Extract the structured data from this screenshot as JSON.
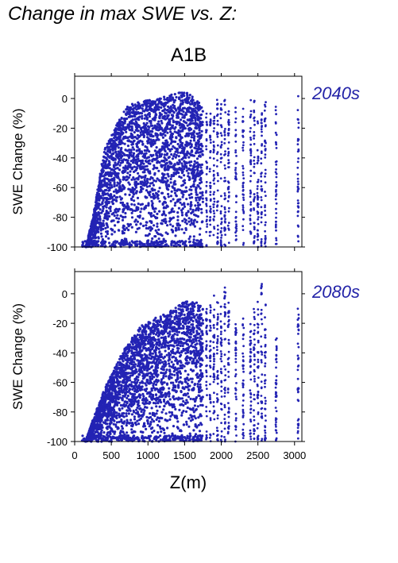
{
  "figure": {
    "title": "Change in max SWE vs. Z:",
    "scenario": "A1B"
  },
  "colors": {
    "points": "#2323b4",
    "label": "#2323a8",
    "axis": "#000000"
  },
  "chart_data": [
    {
      "type": "scatter",
      "panel_label": "2040s",
      "xlabel": "",
      "ylabel": "SWE Change (%)",
      "xlim": [
        0,
        3100
      ],
      "ylim": [
        -100,
        15
      ],
      "xticks": [
        0,
        500,
        1000,
        1500,
        2000,
        2500,
        3000
      ],
      "yticks": [
        -100,
        -80,
        -60,
        -40,
        -20,
        0
      ],
      "x_tick_labels_shown": false,
      "dense_envelope": [
        [
          150,
          -100
        ],
        [
          250,
          -80
        ],
        [
          400,
          -35
        ],
        [
          550,
          -20
        ],
        [
          700,
          -5
        ],
        [
          900,
          -2
        ],
        [
          1150,
          0
        ],
        [
          1350,
          3
        ],
        [
          1500,
          5
        ],
        [
          1650,
          0
        ],
        [
          1750,
          -5
        ]
      ],
      "sparse_columns_x": [
        1800,
        1850,
        1900,
        1950,
        2000,
        2050,
        2100,
        2200,
        2300,
        2400,
        2450,
        2500,
        2550,
        2600,
        2750,
        3050
      ],
      "sparse_columns_top": [
        -5,
        -8,
        -10,
        0,
        -3,
        5,
        -2,
        -5,
        -5,
        0,
        0,
        -8,
        -5,
        2,
        -3,
        2
      ]
    },
    {
      "type": "scatter",
      "panel_label": "2080s",
      "xlabel": "Z(m)",
      "ylabel": "SWE Change (%)",
      "xlim": [
        0,
        3100
      ],
      "ylim": [
        -100,
        15
      ],
      "xticks": [
        0,
        500,
        1000,
        1500,
        2000,
        2500,
        3000
      ],
      "yticks": [
        -100,
        -80,
        -60,
        -40,
        -20,
        0
      ],
      "x_tick_labels_shown": true,
      "dense_envelope": [
        [
          150,
          -100
        ],
        [
          250,
          -85
        ],
        [
          400,
          -65
        ],
        [
          550,
          -50
        ],
        [
          700,
          -35
        ],
        [
          900,
          -22
        ],
        [
          1150,
          -15
        ],
        [
          1350,
          -10
        ],
        [
          1500,
          -5
        ],
        [
          1650,
          -5
        ],
        [
          1750,
          -10
        ]
      ],
      "sparse_columns_x": [
        1800,
        1850,
        1900,
        1950,
        2000,
        2050,
        2100,
        2200,
        2300,
        2400,
        2450,
        2500,
        2550,
        2600,
        2750,
        3050
      ],
      "sparse_columns_top": [
        -10,
        -5,
        0,
        -5,
        -8,
        5,
        -3,
        -20,
        -15,
        -20,
        -10,
        -5,
        10,
        -5,
        -30,
        -10
      ]
    }
  ]
}
